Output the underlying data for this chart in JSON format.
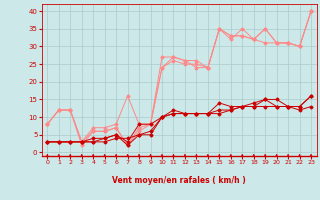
{
  "bg_color": "#cce8e8",
  "grid_color": "#aacccc",
  "line_color_dark": "#cc0000",
  "line_color_light": "#ff8888",
  "xlabel": "Vent moyen/en rafales ( km/h )",
  "xlabel_color": "#cc0000",
  "tick_color": "#cc0000",
  "ylim": [
    -1,
    42
  ],
  "xlim": [
    -0.5,
    23.5
  ],
  "yticks": [
    0,
    5,
    10,
    15,
    20,
    25,
    30,
    35,
    40
  ],
  "xticks": [
    0,
    1,
    2,
    3,
    4,
    5,
    6,
    7,
    8,
    9,
    10,
    11,
    12,
    13,
    14,
    15,
    16,
    17,
    18,
    19,
    20,
    21,
    22,
    23
  ],
  "series_dark": [
    [
      3,
      3,
      3,
      3,
      3,
      3,
      4,
      4,
      5,
      5,
      10,
      11,
      11,
      11,
      11,
      11,
      12,
      13,
      13,
      13,
      13,
      13,
      13,
      16
    ],
    [
      3,
      3,
      3,
      3,
      4,
      4,
      5,
      2,
      5,
      6,
      10,
      12,
      11,
      11,
      11,
      14,
      13,
      13,
      13,
      15,
      15,
      13,
      12,
      13
    ],
    [
      3,
      3,
      3,
      3,
      3,
      4,
      5,
      3,
      8,
      8,
      10,
      11,
      11,
      11,
      11,
      12,
      12,
      13,
      14,
      15,
      13,
      13,
      13,
      16
    ]
  ],
  "series_light": [
    [
      8,
      12,
      12,
      3,
      7,
      7,
      8,
      16,
      8,
      8,
      27,
      27,
      26,
      24,
      24,
      35,
      32,
      35,
      32,
      31,
      31,
      31,
      30,
      40
    ],
    [
      8,
      12,
      12,
      3,
      6,
      6,
      7,
      2,
      7,
      8,
      24,
      27,
      26,
      26,
      24,
      35,
      33,
      33,
      32,
      35,
      31,
      31,
      30,
      40
    ],
    [
      8,
      12,
      12,
      2,
      6,
      6,
      7,
      2,
      6,
      8,
      24,
      26,
      25,
      25,
      24,
      35,
      33,
      33,
      32,
      35,
      31,
      31,
      30,
      40
    ]
  ],
  "figsize": [
    3.2,
    2.0
  ],
  "dpi": 100
}
